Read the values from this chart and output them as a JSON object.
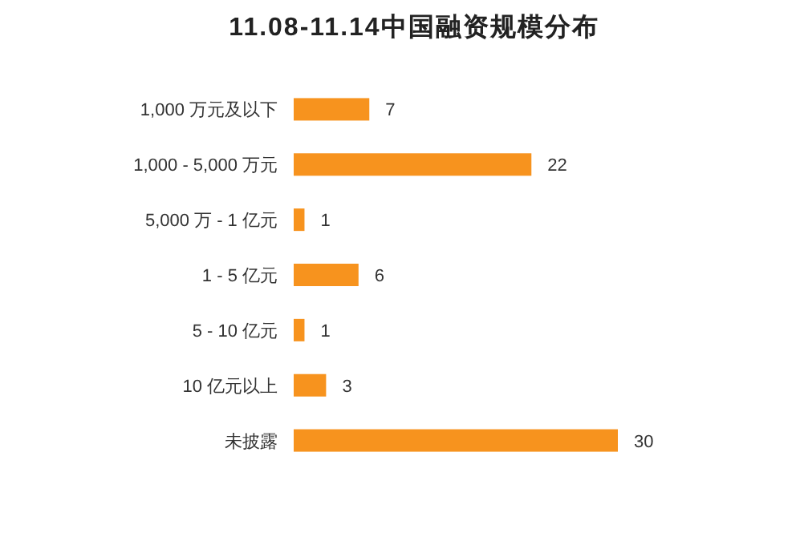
{
  "chart_data": {
    "type": "bar",
    "orientation": "horizontal",
    "title": "11.08-11.14中国融资规模分布",
    "categories": [
      "1,000 万元及以下",
      "1,000 - 5,000 万元",
      "5,000 万 - 1 亿元",
      "1 - 5 亿元",
      "5 - 10 亿元",
      "10 亿元以上",
      "未披露"
    ],
    "values": [
      7,
      22,
      1,
      6,
      1,
      3,
      30
    ],
    "color": "#f7931e",
    "data_labels": true
  }
}
